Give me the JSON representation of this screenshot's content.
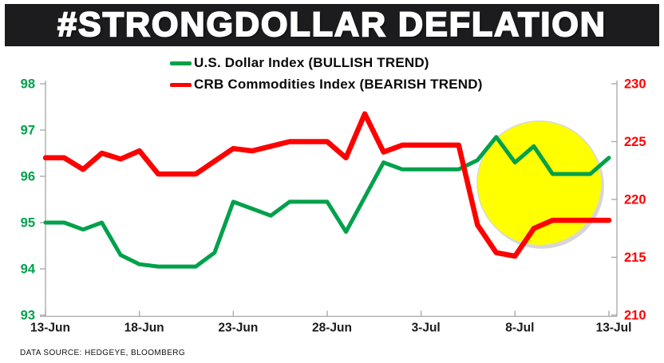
{
  "title": "#STRONGDOLLAR DEFLATION",
  "footer": "DATA SOURCE: HEDGEYE, BLOOMBERG",
  "legend": [
    {
      "label": "U.S. Dollar Index (BULLISH TREND)",
      "color": "#00A14B"
    },
    {
      "label": "CRB Commodities Index (BEARISH TREND)",
      "color": "#FE0000"
    }
  ],
  "colors": {
    "title_bar_bg": "#1c1c1f",
    "title_text": "#ffffff",
    "axis_line": "#a6a6a6",
    "x_label": "#1a1a1a",
    "left_axis_label": "#00A14B",
    "right_axis_label": "#FE0000",
    "highlight_fill": "#FFFF00",
    "highlight_rim": "#d8d8d8"
  },
  "chart_data": {
    "type": "line",
    "title": "",
    "xlabel": "",
    "ylabel_left": "",
    "ylabel_right": "",
    "grid": false,
    "legend_position": "top-center",
    "x_start_label": "13-Jun",
    "x_end_label": "13-Jul",
    "x_tick_labels": [
      "13-Jun",
      "18-Jun",
      "23-Jun",
      "28-Jun",
      "3-Jul",
      "8-Jul",
      "13-Jul"
    ],
    "x_tick_indices": [
      0,
      5,
      10,
      15,
      20,
      25,
      30
    ],
    "left_axis": {
      "min": 93,
      "max": 98,
      "ticks": [
        98,
        97,
        96,
        95,
        94,
        93
      ],
      "color": "#00A14B"
    },
    "right_axis": {
      "min": 210,
      "max": 230,
      "ticks": [
        230,
        225,
        220,
        215,
        210
      ],
      "color": "#FE0000"
    },
    "series": [
      {
        "name": "U.S. Dollar Index (BULLISH TREND)",
        "axis": "left",
        "color": "#00A14B",
        "line_width": 5,
        "values": [
          95.0,
          95.0,
          94.85,
          95.0,
          94.3,
          94.1,
          94.05,
          94.05,
          94.05,
          94.35,
          95.45,
          95.3,
          95.15,
          95.45,
          95.45,
          95.45,
          94.8,
          95.55,
          96.3,
          96.15,
          96.15,
          96.15,
          96.15,
          96.35,
          96.85,
          96.3,
          96.65,
          96.05,
          96.05,
          96.05,
          96.4
        ]
      },
      {
        "name": "CRB Commodities Index (BEARISH TREND)",
        "axis": "right",
        "color": "#FE0000",
        "line_width": 6.5,
        "values": [
          223.6,
          223.6,
          222.6,
          224.0,
          223.5,
          224.2,
          222.2,
          222.2,
          222.2,
          223.3,
          224.4,
          224.2,
          224.6,
          225.0,
          225.0,
          225.0,
          223.6,
          227.4,
          224.1,
          224.7,
          224.7,
          224.7,
          224.7,
          217.8,
          215.4,
          215.1,
          217.5,
          218.2,
          218.2,
          218.2,
          218.2
        ]
      }
    ],
    "annotations": [
      {
        "type": "highlight-circle",
        "fill": "#FFFF00",
        "center_x_index": 26.3,
        "center_y_left_value": 95.85,
        "radius_px": 78
      }
    ]
  }
}
